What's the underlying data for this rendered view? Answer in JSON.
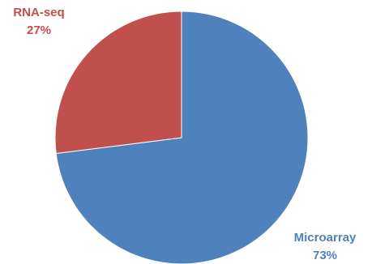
{
  "chart_data": {
    "type": "pie",
    "slices": [
      {
        "label": "Microarray",
        "value": 73,
        "value_label": "73%",
        "color": "#4f81bd"
      },
      {
        "label": "RNA-seq",
        "value": 27,
        "value_label": "27%",
        "color": "#c0504d"
      }
    ],
    "start_angle_deg": 0,
    "direction": "clockwise",
    "legend": "none",
    "label_position": "outside",
    "slice_border_color": "#ffffff"
  }
}
